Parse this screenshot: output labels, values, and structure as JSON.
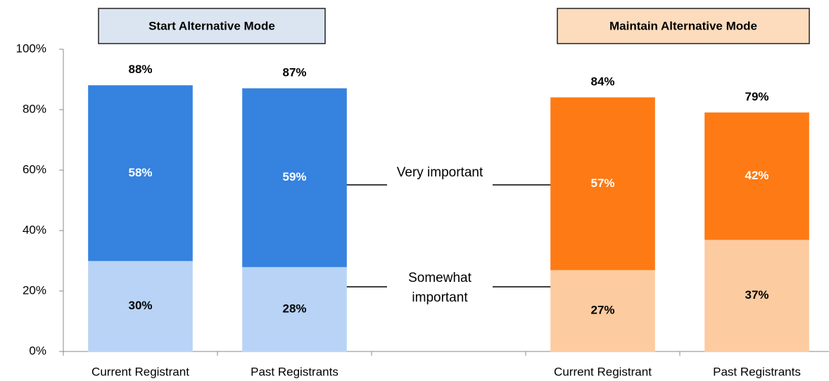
{
  "chart_data": {
    "type": "stacked_bar",
    "group_titles": [
      "Start Alternative Mode",
      "Maintain Alternative Mode"
    ],
    "group_title_colors": [
      "#dbe5f1",
      "#fcdcbd"
    ],
    "categories": [
      "Current Registrant",
      "Past Registrants",
      null,
      "Current Registrant",
      "Past Registrants"
    ],
    "series": [
      {
        "name": "Somewhat important",
        "colors": [
          "#b8d3f6",
          "#b8d3f6",
          null,
          "#fdcba0",
          "#fdcba0"
        ],
        "values": [
          30,
          28,
          null,
          27,
          37
        ],
        "value_labels": [
          "30%",
          "28%",
          null,
          "27%",
          "37%"
        ]
      },
      {
        "name": "Very important",
        "colors": [
          "#3582df",
          "#3582df",
          null,
          "#fd7a14",
          "#fd7a14"
        ],
        "values": [
          58,
          59,
          null,
          57,
          42
        ],
        "value_labels": [
          "58%",
          "59%",
          null,
          "57%",
          "42%"
        ]
      }
    ],
    "totals": {
      "values": [
        88,
        87,
        null,
        84,
        79
      ],
      "value_labels": [
        "88%",
        "87%",
        null,
        "84%",
        "79%"
      ]
    },
    "ylim": [
      0,
      100
    ],
    "yticks": [
      {
        "value": 0,
        "label": "0%"
      },
      {
        "value": 20,
        "label": "20%"
      },
      {
        "value": 40,
        "label": "40%"
      },
      {
        "value": 60,
        "label": "60%"
      },
      {
        "value": 80,
        "label": "80%"
      },
      {
        "value": 100,
        "label": "100%"
      }
    ]
  }
}
